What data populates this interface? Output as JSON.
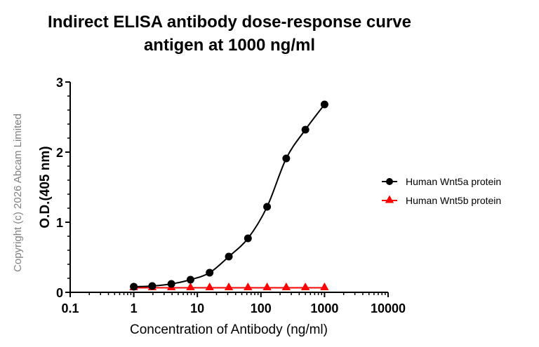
{
  "chart_data": {
    "type": "scatter",
    "title": "Indirect ELISA antibody dose-response curve",
    "subtitle": "antigen at 1000 ng/ml",
    "xlabel": "Concentration of Antibody (ng/ml)",
    "ylabel": "O.D.(405 nm)",
    "xscale": "log",
    "xlim": [
      0.1,
      10000
    ],
    "ylim": [
      0,
      3
    ],
    "x_ticks": [
      "0.1",
      "1",
      "10",
      "100",
      "1000",
      "10000"
    ],
    "y_ticks": [
      "0",
      "1",
      "2",
      "3"
    ],
    "grid": false,
    "legend_position": "right",
    "x": [
      1,
      1.95,
      3.9,
      7.8,
      15.6,
      31.25,
      62.5,
      125,
      250,
      500,
      1000
    ],
    "series": [
      {
        "name": "Human Wnt5a protein",
        "color": "#000000",
        "marker": "circle",
        "fit": "sigmoidal curve",
        "values": [
          0.08,
          0.09,
          0.12,
          0.18,
          0.28,
          0.51,
          0.77,
          1.22,
          1.91,
          2.32,
          2.68
        ]
      },
      {
        "name": "Human Wnt5b protein",
        "color": "#ff0000",
        "marker": "triangle",
        "fit": "flat line",
        "values": [
          0.065,
          0.065,
          0.065,
          0.065,
          0.065,
          0.065,
          0.065,
          0.065,
          0.065,
          0.065,
          0.065
        ]
      }
    ]
  },
  "watermark": "Copyright (c) 2026 Abcam Limited"
}
